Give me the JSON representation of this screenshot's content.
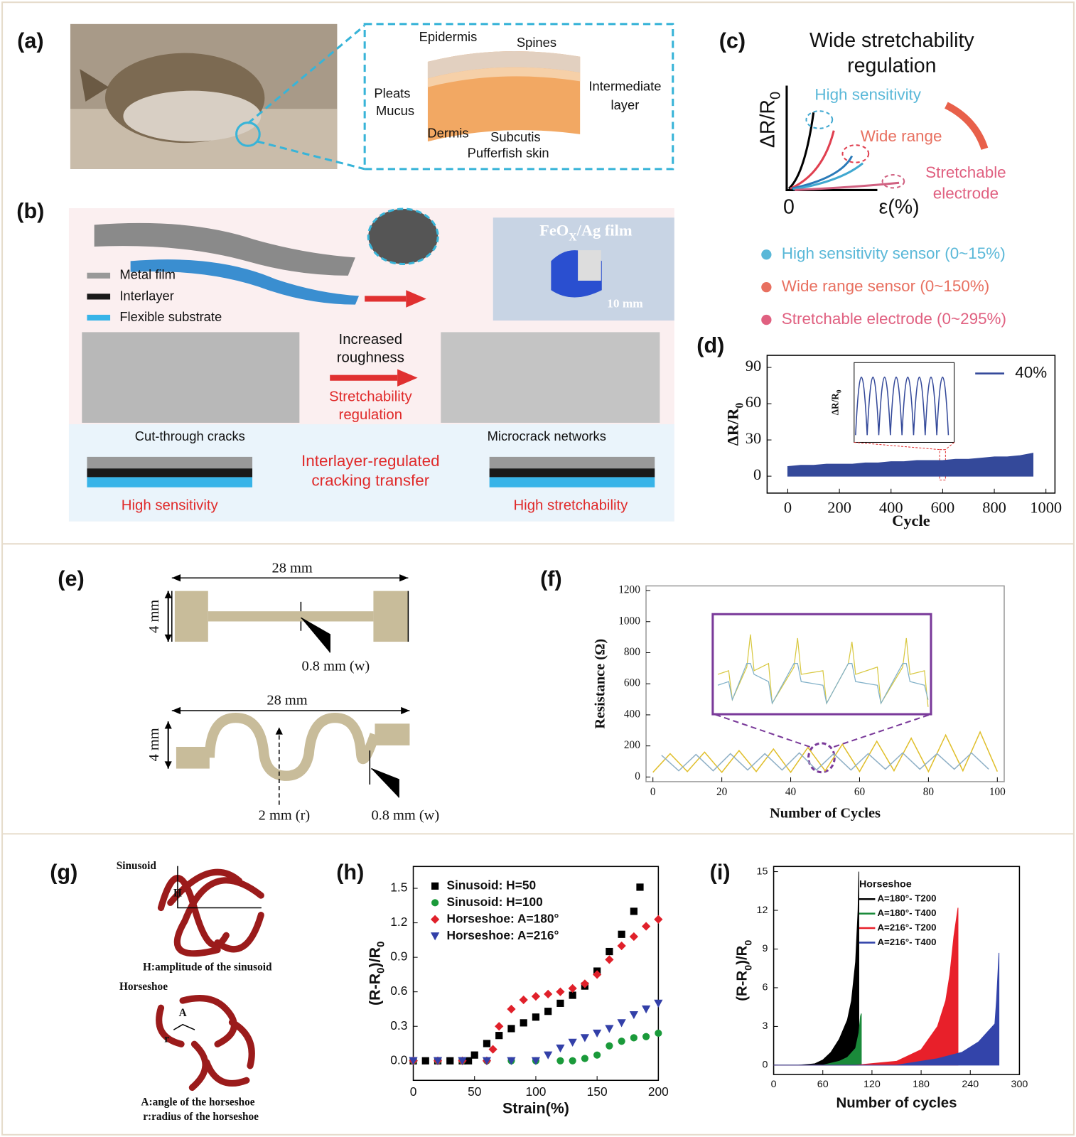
{
  "panel_labels": [
    "(a)",
    "(b)",
    "(c)",
    "(d)",
    "(e)",
    "(f)",
    "(g)",
    "(h)",
    "(i)"
  ],
  "a": {
    "epidermis": "Epidermis",
    "spines": "Spines",
    "pleats": "Pleats",
    "mucus": "Mucus",
    "intermediate": [
      "Intermediate",
      "layer"
    ],
    "dermis": "Dermis",
    "subcutis": "Subcutis",
    "caption": "Pufferfish skin"
  },
  "b": {
    "legend": [
      "Metal film",
      "Interlayer",
      "Flexible substrate"
    ],
    "photo_label": [
      "FeO",
      "X",
      "/Ag film"
    ],
    "scale": "10 mm",
    "increased": [
      "Increased",
      "roughness"
    ],
    "regulation": [
      "Stretchability",
      "regulation"
    ],
    "cut": "Cut-through cracks",
    "micro": "Microcrack networks",
    "transfer": [
      "Interlayer-regulated",
      "cracking transfer"
    ],
    "high_sensitivity": "High sensitivity",
    "high_stretchability": "High stretchability"
  },
  "c": {
    "title": [
      "Wide stretchability",
      "regulation"
    ],
    "y_label": [
      "ΔR/R",
      "0"
    ],
    "x_label": "ε(%)",
    "origin": "0",
    "high_sensitivity": "High sensitivity",
    "wide_range": "Wide range",
    "electrode": [
      "Stretchable",
      "electrode"
    ],
    "legend": [
      "High sensitivity sensor (0~15%)",
      "Wide range sensor (0~150%)",
      "Stretchable electrode (0~295%)"
    ]
  },
  "e": {
    "top": {
      "length": "28 mm",
      "height": "4 mm",
      "width": "0.8 mm (w)"
    },
    "bottom": {
      "length": "28 mm",
      "height": "4 mm",
      "radius": "2 mm (r)",
      "width": "0.8 mm (w)"
    }
  },
  "g": {
    "sinusoid": "Sinusoid",
    "h": "H",
    "h_caption": "H:amplitude of the sinusoid",
    "horseshoe": "Horseshoe",
    "a": "A",
    "r": "r",
    "a_caption": "A:angle of the horseshoe",
    "r_caption": "r:radius of the horseshoe"
  },
  "chart_data": [
    {
      "type": "area",
      "x_label": "Cycle",
      "y_label": [
        "ΔR/R",
        "0"
      ],
      "inset_y_label": [
        "ΔR/R",
        "0"
      ],
      "xlim": [
        -80,
        1035
      ],
      "ylim": [
        -14,
        100
      ],
      "xticks": [
        0,
        200,
        400,
        600,
        800,
        1000
      ],
      "yticks": [
        0,
        30,
        60,
        90
      ],
      "series": [
        {
          "name": "40%",
          "color": "#34499a",
          "x": [
            0,
            50,
            100,
            150,
            200,
            250,
            300,
            350,
            400,
            450,
            500,
            550,
            600,
            650,
            700,
            750,
            800,
            850,
            900,
            950
          ],
          "values": [
            8,
            9,
            9,
            10,
            10,
            10,
            11,
            11,
            12,
            12,
            13,
            13,
            13,
            14,
            14,
            15,
            16,
            16,
            17,
            19
          ]
        }
      ]
    },
    {
      "type": "line",
      "x_label": "Number of Cycles",
      "y_label": "Resistance (Ω)",
      "xlim": [
        -2,
        102
      ],
      "ylim": [
        -30,
        1230
      ],
      "xticks": [
        0,
        20,
        40,
        60,
        80,
        100
      ],
      "yticks": [
        0,
        200,
        400,
        600,
        800,
        1000,
        1200
      ],
      "series": [
        {
          "color": "#e0bf2c",
          "x": [
            0,
            5,
            10,
            15,
            20,
            25,
            30,
            35,
            40,
            45,
            50,
            55,
            60,
            65,
            70,
            75,
            80,
            85,
            90,
            95,
            100
          ],
          "values": [
            30,
            150,
            35,
            160,
            30,
            170,
            35,
            180,
            30,
            190,
            40,
            210,
            35,
            230,
            40,
            250,
            35,
            270,
            40,
            290,
            35
          ]
        },
        {
          "color": "#8fb0c6",
          "x": [
            2.5,
            7.5,
            12.5,
            17.5,
            22.5,
            27.5,
            32.5,
            37.5,
            42.5,
            47.5,
            52.5,
            57.5,
            62.5,
            67.5,
            72.5,
            77.5,
            82.5,
            87.5,
            92.5,
            97.5
          ],
          "values": [
            140,
            40,
            145,
            40,
            150,
            45,
            150,
            45,
            155,
            45,
            150,
            45,
            150,
            50,
            155,
            50,
            150,
            50,
            155,
            50
          ]
        }
      ]
    },
    {
      "type": "scatter",
      "x_label": "Strain(%)",
      "y_label": [
        "(R-R",
        "0",
        ")/R",
        "0"
      ],
      "xlim": [
        0,
        200
      ],
      "ylim": [
        -0.17,
        1.69
      ],
      "xticks": [
        0,
        50,
        100,
        150,
        200
      ],
      "yticks": [
        {
          "value": 0,
          "label": "0.0"
        },
        0.3,
        0.6,
        0.9,
        1.2,
        1.5
      ],
      "series": [
        {
          "name": "Sinusoid: H=50",
          "color": "#000000",
          "marker": "square",
          "x": [
            0,
            10,
            20,
            30,
            40,
            45,
            50,
            60,
            70,
            80,
            90,
            100,
            110,
            120,
            130,
            140,
            150,
            160,
            170,
            180,
            185
          ],
          "values": [
            0,
            0,
            0,
            0,
            0,
            0,
            0.05,
            0.15,
            0.22,
            0.28,
            0.33,
            0.38,
            0.43,
            0.5,
            0.57,
            0.65,
            0.78,
            0.95,
            1.1,
            1.3,
            1.51
          ]
        },
        {
          "name": "Sinusoid: H=100",
          "color": "#1a9a3a",
          "marker": "circle",
          "x": [
            0,
            20,
            40,
            60,
            80,
            100,
            120,
            130,
            140,
            150,
            160,
            170,
            180,
            190,
            200
          ],
          "values": [
            0,
            0,
            0,
            0,
            0,
            0,
            0,
            0,
            0.02,
            0.05,
            0.13,
            0.17,
            0.2,
            0.21,
            0.24
          ]
        },
        {
          "name": "Horseshoe: A=180°",
          "color": "#e0202a",
          "marker": "diamond",
          "x": [
            0,
            20,
            40,
            60,
            65,
            70,
            80,
            90,
            100,
            110,
            120,
            130,
            140,
            150,
            160,
            170,
            180,
            190,
            200
          ],
          "values": [
            0,
            0,
            0,
            0,
            0.1,
            0.3,
            0.45,
            0.53,
            0.56,
            0.58,
            0.6,
            0.63,
            0.67,
            0.75,
            0.88,
            1.0,
            1.08,
            1.17,
            1.23
          ]
        },
        {
          "name": "Horseshoe: A=216°",
          "color": "#3340a8",
          "marker": "triangle",
          "x": [
            0,
            20,
            40,
            60,
            80,
            100,
            110,
            120,
            130,
            140,
            150,
            160,
            170,
            180,
            190,
            200
          ],
          "values": [
            0,
            0,
            0,
            0,
            0,
            0,
            0.05,
            0.11,
            0.16,
            0.2,
            0.24,
            0.28,
            0.33,
            0.4,
            0.45,
            0.5
          ]
        }
      ]
    },
    {
      "type": "area",
      "x_label": "Number of cycles",
      "y_label": [
        "(R-R",
        "0",
        ")/R",
        "0"
      ],
      "legend_title": "Horseshoe",
      "xlim": [
        0,
        300
      ],
      "ylim": [
        -0.73,
        15.4
      ],
      "xticks": [
        0,
        60,
        120,
        180,
        240,
        300
      ],
      "yticks": [
        0,
        3,
        6,
        9,
        12,
        15
      ],
      "series": [
        {
          "name": "A=180°- T200",
          "color": "#000000",
          "x": [
            0,
            30,
            50,
            60,
            70,
            80,
            90,
            95,
            100,
            103,
            104
          ],
          "values": [
            0,
            0,
            0.1,
            0.4,
            1,
            2,
            3.5,
            5,
            8,
            12,
            15
          ]
        },
        {
          "name": "A=180°- T400",
          "color": "#1a8a3a",
          "x": [
            0,
            60,
            80,
            90,
            100,
            104,
            106,
            107
          ],
          "values": [
            0,
            0,
            0.3,
            0.6,
            1.3,
            2.5,
            3.8,
            4
          ]
        },
        {
          "name": "A=216°- T200",
          "color": "#e8202a",
          "x": [
            0,
            100,
            150,
            180,
            200,
            210,
            215,
            220,
            225
          ],
          "values": [
            0,
            0,
            0.3,
            1.2,
            3,
            5,
            7,
            10,
            12.2
          ]
        },
        {
          "name": "A=216°- T400",
          "color": "#3344aa",
          "x": [
            0,
            150,
            200,
            230,
            250,
            260,
            270,
            272,
            275
          ],
          "values": [
            0,
            0,
            0.5,
            1,
            1.8,
            2.5,
            3.2,
            5,
            8.7
          ]
        }
      ]
    }
  ]
}
